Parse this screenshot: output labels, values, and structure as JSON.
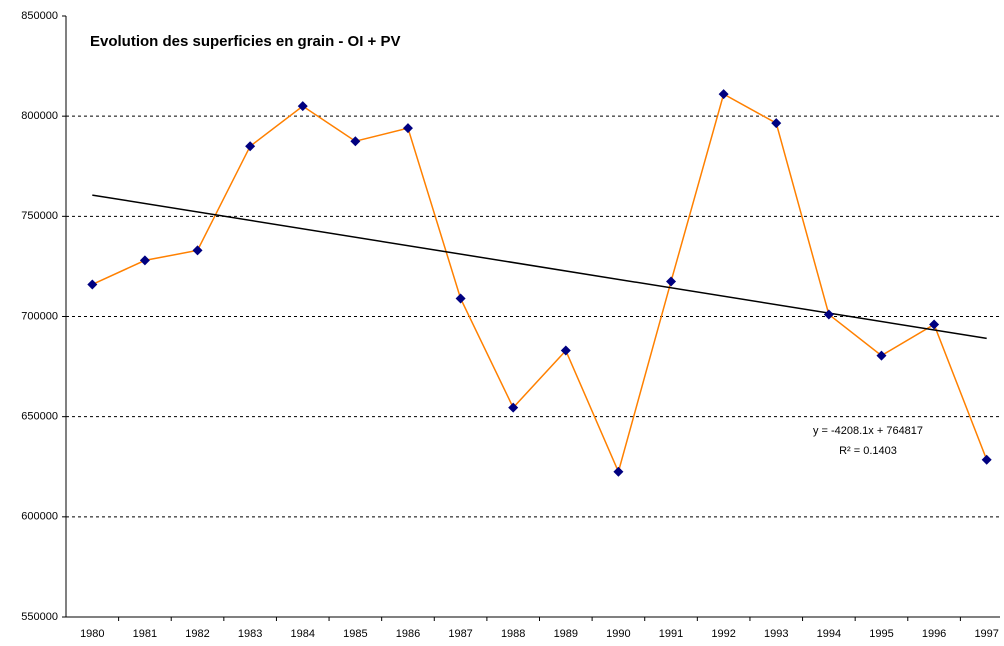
{
  "chart_data": {
    "type": "line",
    "title": "Evolution des superficies en grain - OI + PV",
    "categories": [
      "1980",
      "1981",
      "1982",
      "1983",
      "1984",
      "1985",
      "1986",
      "1987",
      "1988",
      "1989",
      "1990",
      "1991",
      "1992",
      "1993",
      "1994",
      "1995",
      "1996",
      "1997"
    ],
    "series": [
      {
        "name": "Superficies",
        "color": "#ff8000",
        "marker_color": "#000080",
        "values": [
          716000,
          728000,
          733000,
          785000,
          805000,
          787500,
          794000,
          709000,
          654500,
          683000,
          622500,
          717500,
          811000,
          796500,
          701000,
          680500,
          696000,
          628500
        ]
      }
    ],
    "trendline": {
      "slope": -4208.1,
      "intercept": 764817,
      "color": "#000000",
      "label": "y = -4208.1x + 764817",
      "r2_label": "R² = 0.1403"
    },
    "ylim": [
      550000,
      850000
    ],
    "yticks": [
      550000,
      600000,
      650000,
      700000,
      750000,
      800000,
      850000
    ],
    "grid": true
  }
}
